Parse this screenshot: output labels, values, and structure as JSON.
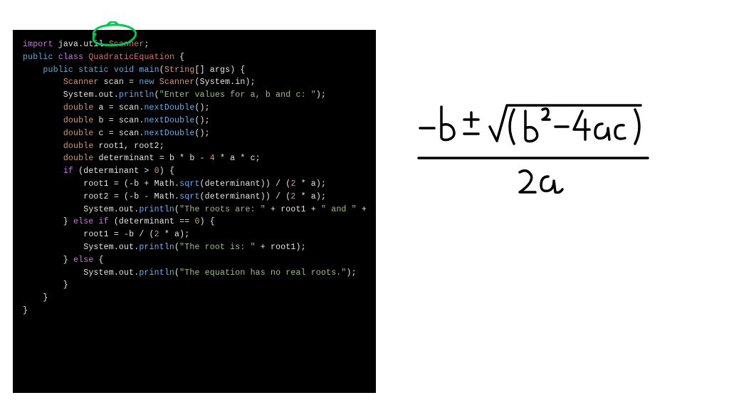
{
  "code": {
    "background": "#000000",
    "font_family": "Menlo, Consolas, Courier New, monospace",
    "colors": {
      "keyword_import": "#c678dd",
      "keyword_access": "#5fa8d3",
      "keyword_flow": "#c678dd",
      "classname": "#e06c75",
      "method": "#61afef",
      "type": "#d19a66",
      "string": "#98c379",
      "number": "#d19a66",
      "plain": "#e6e6e6",
      "package": "#d19a66"
    },
    "lines": [
      [
        [
          "import ",
          "k-import"
        ],
        [
          "java.util.",
          "t-plain"
        ],
        [
          "Scanner",
          "t-scanner"
        ],
        [
          ";",
          "t-punc"
        ]
      ],
      [
        [
          "",
          "t-plain"
        ]
      ],
      [
        [
          "public ",
          "k-public"
        ],
        [
          "class ",
          "k-class"
        ],
        [
          "QuadraticEquation",
          "t-classname"
        ],
        [
          " {",
          "t-punc"
        ]
      ],
      [
        [
          "    ",
          "t-plain"
        ],
        [
          "public ",
          "k-public"
        ],
        [
          "static ",
          "k-static"
        ],
        [
          "void ",
          "k-void"
        ],
        [
          "main",
          "t-method"
        ],
        [
          "(",
          "t-punc"
        ],
        [
          "String",
          "t-type"
        ],
        [
          "[] args) {",
          "t-plain"
        ]
      ],
      [
        [
          "        ",
          "t-plain"
        ],
        [
          "Scanner",
          "t-type"
        ],
        [
          " scan = ",
          "t-plain"
        ],
        [
          "new ",
          "k-new"
        ],
        [
          "Scanner",
          "t-type"
        ],
        [
          "(System.in);",
          "t-plain"
        ]
      ],
      [
        [
          "        System.out.",
          "t-plain"
        ],
        [
          "println",
          "t-method"
        ],
        [
          "(",
          "t-punc"
        ],
        [
          "\"Enter values for a, b and c: \"",
          "t-string"
        ],
        [
          ");",
          "t-punc"
        ]
      ],
      [
        [
          "        ",
          "t-plain"
        ],
        [
          "double",
          "t-type"
        ],
        [
          " a = scan.",
          "t-plain"
        ],
        [
          "nextDouble",
          "t-method"
        ],
        [
          "();",
          "t-punc"
        ]
      ],
      [
        [
          "        ",
          "t-plain"
        ],
        [
          "double",
          "t-type"
        ],
        [
          " b = scan.",
          "t-plain"
        ],
        [
          "nextDouble",
          "t-method"
        ],
        [
          "();",
          "t-punc"
        ]
      ],
      [
        [
          "        ",
          "t-plain"
        ],
        [
          "double",
          "t-type"
        ],
        [
          " c = scan.",
          "t-plain"
        ],
        [
          "nextDouble",
          "t-method"
        ],
        [
          "();",
          "t-punc"
        ]
      ],
      [
        [
          "        ",
          "t-plain"
        ],
        [
          "double",
          "t-type"
        ],
        [
          " root1, root2;",
          "t-plain"
        ]
      ],
      [
        [
          "        ",
          "t-plain"
        ],
        [
          "double",
          "t-type"
        ],
        [
          " determinant = b * b - ",
          "t-plain"
        ],
        [
          "4",
          "t-num"
        ],
        [
          " * a * c;",
          "t-plain"
        ]
      ],
      [
        [
          "",
          "t-plain"
        ]
      ],
      [
        [
          "        ",
          "t-plain"
        ],
        [
          "if",
          "k-if"
        ],
        [
          " (determinant > ",
          "t-plain"
        ],
        [
          "0",
          "t-num"
        ],
        [
          ") {",
          "t-plain"
        ]
      ],
      [
        [
          "            root1 = (-b + Math.",
          "t-plain"
        ],
        [
          "sqrt",
          "t-method"
        ],
        [
          "(determinant)) / (",
          "t-plain"
        ],
        [
          "2",
          "t-num"
        ],
        [
          " * a);",
          "t-plain"
        ]
      ],
      [
        [
          "            root2 = (-b - Math.",
          "t-plain"
        ],
        [
          "sqrt",
          "t-method"
        ],
        [
          "(determinant)) / (",
          "t-plain"
        ],
        [
          "2",
          "t-num"
        ],
        [
          " * a);",
          "t-plain"
        ]
      ],
      [
        [
          "            System.out.",
          "t-plain"
        ],
        [
          "println",
          "t-method"
        ],
        [
          "(",
          "t-punc"
        ],
        [
          "\"The roots are: \"",
          "t-string"
        ],
        [
          " + root1 + ",
          "t-plain"
        ],
        [
          "\" and \"",
          "t-string"
        ],
        [
          " +",
          "t-plain"
        ]
      ],
      [
        [
          "        } ",
          "t-plain"
        ],
        [
          "else if",
          "k-else"
        ],
        [
          " (determinant == ",
          "t-plain"
        ],
        [
          "0",
          "t-num"
        ],
        [
          ") {",
          "t-plain"
        ]
      ],
      [
        [
          "            root1 = -b / (",
          "t-plain"
        ],
        [
          "2",
          "t-num"
        ],
        [
          " * a);",
          "t-plain"
        ]
      ],
      [
        [
          "            System.out.",
          "t-plain"
        ],
        [
          "println",
          "t-method"
        ],
        [
          "(",
          "t-punc"
        ],
        [
          "\"The root is: \"",
          "t-string"
        ],
        [
          " + root1);",
          "t-plain"
        ]
      ],
      [
        [
          "        } ",
          "t-plain"
        ],
        [
          "else",
          "k-else"
        ],
        [
          " {",
          "t-plain"
        ]
      ],
      [
        [
          "            System.out.",
          "t-plain"
        ],
        [
          "println",
          "t-method"
        ],
        [
          "(",
          "t-punc"
        ],
        [
          "\"The equation has no real roots.\"",
          "t-string"
        ],
        [
          ");",
          "t-punc"
        ]
      ],
      [
        [
          "        }",
          "t-plain"
        ]
      ],
      [
        [
          "    }",
          "t-plain"
        ]
      ],
      [
        [
          "}",
          "t-plain"
        ]
      ]
    ]
  },
  "annotation": {
    "circle_color": "#00c853",
    "stroke_width": 3
  },
  "formula": {
    "description": "quadratic formula handwritten",
    "text": "-b ± √(b² - 4ac) / 2a",
    "stroke_color": "#000000",
    "stroke_width": 3.5
  }
}
